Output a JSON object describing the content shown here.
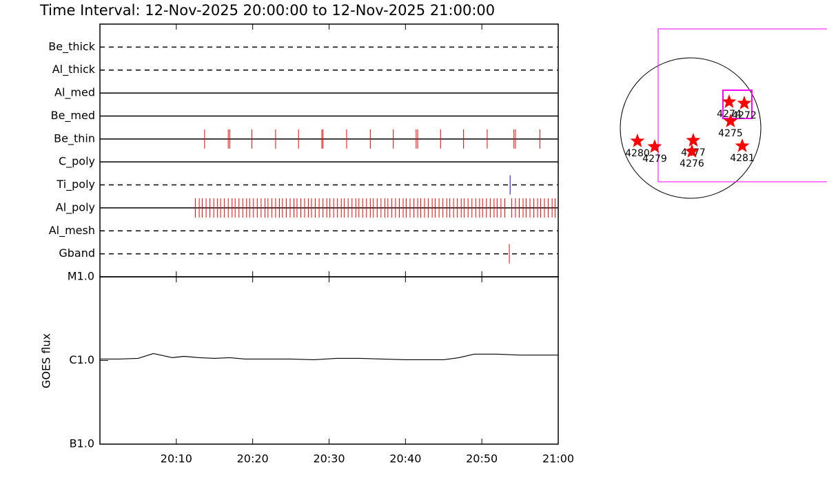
{
  "chart_data": [
    {
      "type": "timeline",
      "title": "Time Interval: 12-Nov-2025 20:00:00 to 12-Nov-2025 21:00:00",
      "xlim": [
        0,
        60
      ],
      "rows": [
        {
          "name": "Be_thick",
          "style": "dashed",
          "color": "#ff0000",
          "times": []
        },
        {
          "name": "Al_thick",
          "style": "dashed",
          "color": "#ff0000",
          "times": []
        },
        {
          "name": "Al_med",
          "style": "solid",
          "color": "#ff0000",
          "times": []
        },
        {
          "name": "Be_med",
          "style": "solid",
          "color": "#ff0000",
          "times": []
        },
        {
          "name": "Be_thin",
          "style": "solid",
          "color": "#ff0000",
          "times": [
            13.7,
            16.8,
            17.0,
            19.9,
            23.0,
            26.0,
            29.05,
            29.2,
            32.3,
            35.4,
            38.4,
            41.4,
            41.6,
            44.6,
            47.6,
            50.7,
            54.2,
            54.4,
            57.6
          ]
        },
        {
          "name": "C_poly",
          "style": "solid",
          "color": "#ff0000",
          "times": []
        },
        {
          "name": "Ti_poly",
          "style": "dashed",
          "color": "#0000ff",
          "times": [
            53.7
          ]
        },
        {
          "name": "Al_poly",
          "style": "solid",
          "color": "#ff0000",
          "times": [
            12.5,
            13.0,
            13.4,
            13.9,
            14.4,
            14.9,
            15.4,
            15.8,
            16.3,
            16.8,
            17.3,
            17.7,
            18.2,
            18.7,
            19.2,
            19.6,
            20.1,
            20.6,
            21.1,
            21.6,
            22.0,
            22.5,
            23.0,
            23.5,
            23.9,
            24.4,
            24.9,
            25.4,
            25.8,
            26.3,
            26.8,
            27.3,
            27.7,
            28.2,
            28.7,
            29.2,
            29.7,
            30.1,
            30.6,
            31.1,
            31.6,
            32.0,
            32.5,
            33.0,
            33.5,
            33.9,
            34.4,
            34.9,
            35.4,
            35.8,
            36.3,
            36.8,
            37.3,
            37.7,
            38.2,
            38.7,
            39.2,
            39.7,
            40.1,
            40.6,
            41.1,
            41.6,
            42.0,
            42.5,
            43.0,
            43.5,
            43.9,
            44.4,
            44.9,
            45.4,
            45.8,
            46.3,
            46.8,
            47.3,
            47.7,
            48.2,
            48.7,
            49.2,
            49.7,
            50.1,
            50.6,
            51.1,
            51.6,
            52.0,
            52.5,
            53.0,
            53.9,
            54.4,
            54.9,
            55.4,
            55.8,
            56.3,
            56.8,
            57.3,
            57.7,
            58.2,
            58.7,
            59.2,
            59.6
          ]
        },
        {
          "name": "Al_mesh",
          "style": "dashed",
          "color": "#ff0000",
          "times": []
        },
        {
          "name": "Gband",
          "style": "dashed",
          "color": "#ff0000",
          "times": [
            53.6
          ]
        }
      ]
    },
    {
      "type": "line",
      "ylabel": "GOES flux",
      "log_scale": true,
      "xlim": [
        0,
        60
      ],
      "xticks": [
        {
          "value": 10,
          "label": "20:10"
        },
        {
          "value": 20,
          "label": "20:20"
        },
        {
          "value": 30,
          "label": "20:30"
        },
        {
          "value": 40,
          "label": "20:40"
        },
        {
          "value": 50,
          "label": "20:50"
        },
        {
          "value": 60,
          "label": "21:00"
        }
      ],
      "ylim": [
        1e-07,
        1e-05
      ],
      "yticks": [
        {
          "value": 1e-07,
          "label": "B1.0"
        },
        {
          "value": 1e-06,
          "label": "C1.0"
        },
        {
          "value": 1e-05,
          "label": "M1.0"
        }
      ],
      "series": [
        {
          "color": "#000000",
          "x": [
            0,
            2.5,
            5,
            7,
            9.5,
            11,
            13,
            15,
            17,
            19,
            22,
            25,
            28,
            31,
            34,
            37,
            40,
            43,
            45,
            47,
            49,
            52,
            55,
            58,
            60
          ],
          "values": [
            1.04e-06,
            1.04e-06,
            1.06e-06,
            1.21e-06,
            1.08e-06,
            1.12e-06,
            1.08e-06,
            1.06e-06,
            1.08e-06,
            1.04e-06,
            1.04e-06,
            1.04e-06,
            1.02e-06,
            1.06e-06,
            1.06e-06,
            1.04e-06,
            1.02e-06,
            1.02e-06,
            1.02e-06,
            1.08e-06,
            1.19e-06,
            1.19e-06,
            1.16e-06,
            1.16e-06,
            1.16e-06
          ]
        }
      ]
    },
    {
      "type": "map",
      "color": "#ff0000",
      "stars": [
        {
          "label": "4274",
          "x": 532,
          "y": 361
        },
        {
          "label": "4272",
          "x": 741,
          "y": 342
        },
        {
          "label": "4275",
          "x": 551,
          "y": 95
        },
        {
          "label": "4280",
          "x": -732,
          "y": -180
        },
        {
          "label": "4279",
          "x": -494,
          "y": -257
        },
        {
          "label": "4277",
          "x": 38,
          "y": -171
        },
        {
          "label": "4276",
          "x": 19,
          "y": -323
        },
        {
          "label": "4281",
          "x": 713,
          "y": -247
        }
      ]
    }
  ]
}
